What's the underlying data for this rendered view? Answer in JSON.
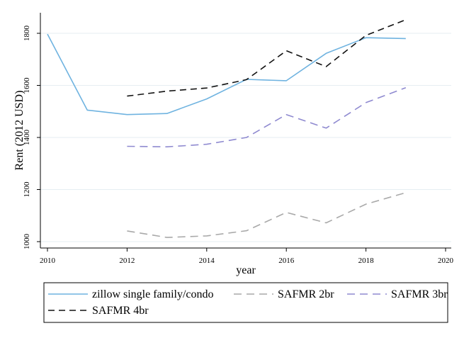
{
  "chart_data": {
    "type": "line",
    "xlabel": "year",
    "ylabel": "Rent (2012 USD)",
    "xlim": [
      2010,
      2020
    ],
    "ylim": [
      1000,
      1850
    ],
    "x_ticks": [
      2010,
      2012,
      2014,
      2016,
      2018,
      2020
    ],
    "y_ticks": [
      1000,
      1200,
      1400,
      1600,
      1800
    ],
    "grid": "horizontal",
    "legend_position": "bottom",
    "series": [
      {
        "name": "zillow single family/condo",
        "color": "#6fb3e0",
        "dash": "solid",
        "x": [
          2010,
          2011,
          2012,
          2013,
          2014,
          2015,
          2016,
          2017,
          2018,
          2019
        ],
        "y": [
          1797,
          1505,
          1488,
          1492,
          1548,
          1623,
          1618,
          1723,
          1783,
          1780
        ]
      },
      {
        "name": "SAFMR 2br",
        "color": "#a9a9a9",
        "dash": "long-dash",
        "x": [
          2012,
          2013,
          2014,
          2015,
          2016,
          2017,
          2018,
          2019
        ],
        "y": [
          1041,
          1016,
          1022,
          1042,
          1112,
          1072,
          1144,
          1188
        ]
      },
      {
        "name": "SAFMR 3br",
        "color": "#8f8ad0",
        "dash": "long-dash",
        "x": [
          2012,
          2013,
          2014,
          2015,
          2016,
          2017,
          2018,
          2019
        ],
        "y": [
          1366,
          1364,
          1374,
          1400,
          1488,
          1436,
          1534,
          1591
        ]
      },
      {
        "name": "SAFMR 4br",
        "color": "#111111",
        "dash": "dash",
        "x": [
          2012,
          2013,
          2014,
          2015,
          2016,
          2017,
          2018,
          2019
        ],
        "y": [
          1559,
          1578,
          1590,
          1622,
          1733,
          1672,
          1792,
          1852
        ]
      }
    ]
  }
}
